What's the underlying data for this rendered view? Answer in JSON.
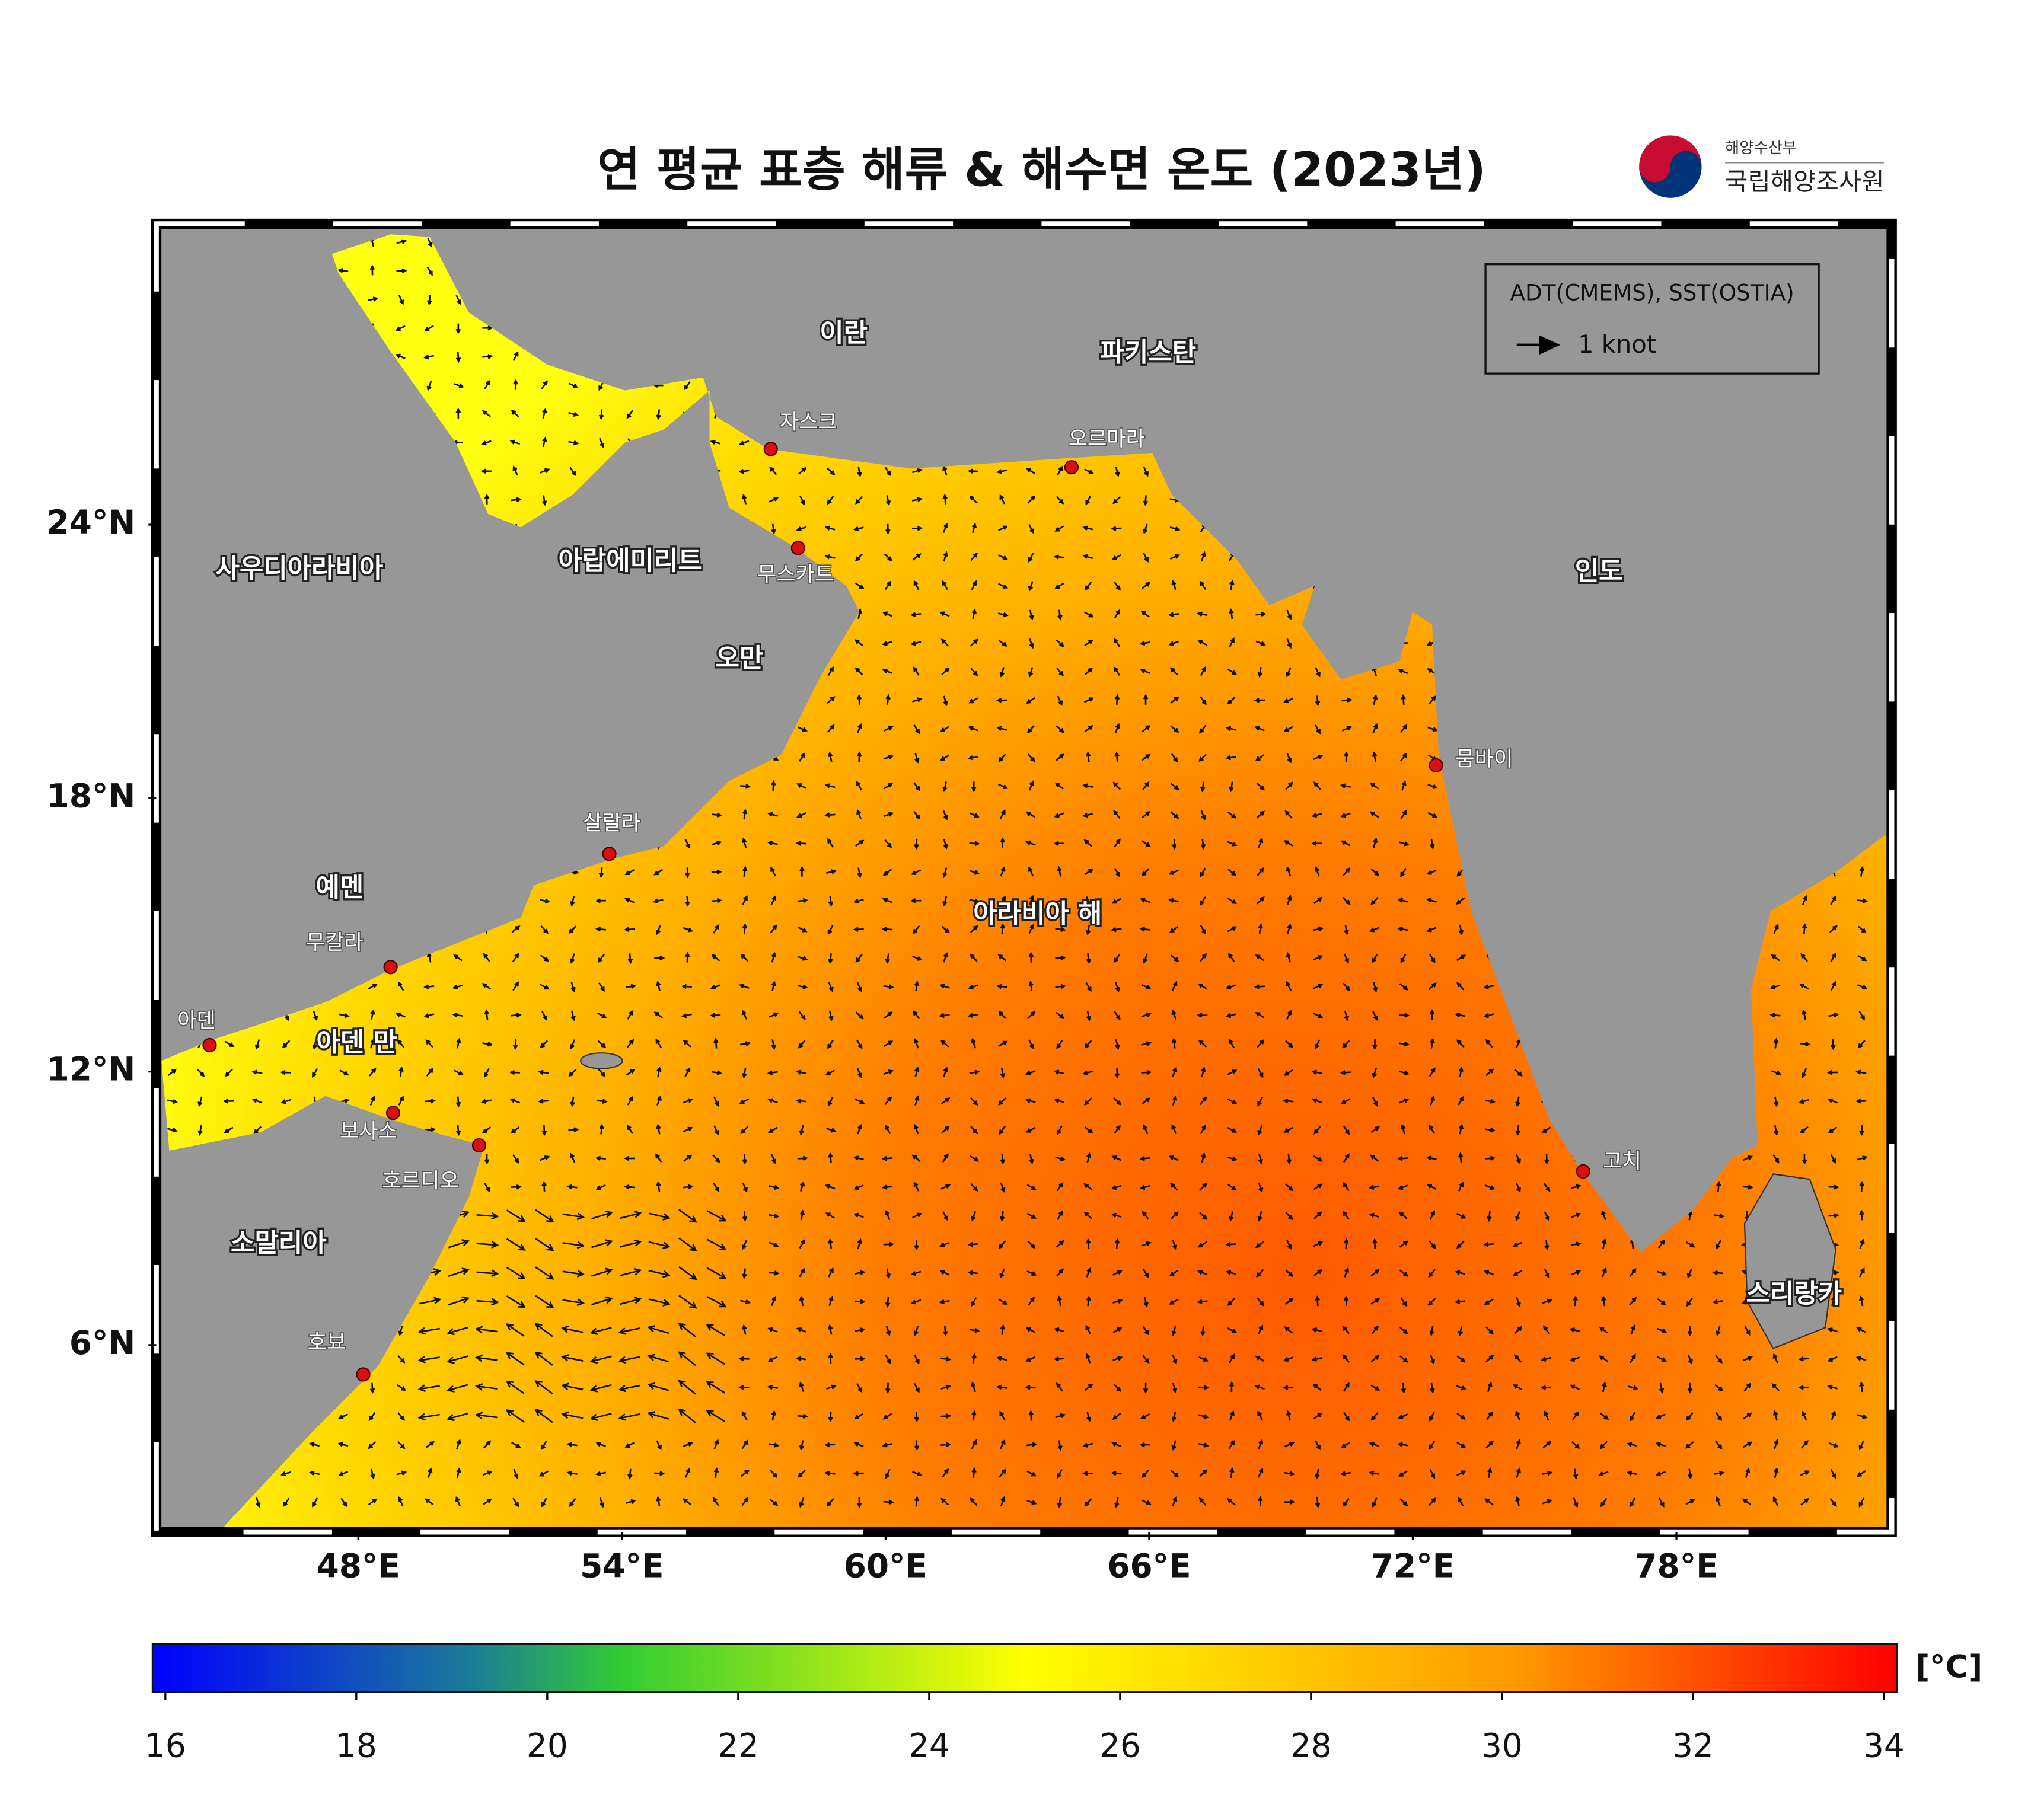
{
  "title": "연 평균 표층 해류 & 해수면 온도 (2023년)",
  "logo": {
    "ministry": "해양수산부",
    "agency": "국립해양조사원"
  },
  "legend": {
    "source": "ADT(CMEMS), SST(OSTIA)",
    "scale": "1 knot"
  },
  "map": {
    "xlim": [
      43.4,
      82.9
    ],
    "ylim": [
      1.9,
      30.6
    ],
    "xticks": [
      {
        "value": 48,
        "label": "48°E"
      },
      {
        "value": 54,
        "label": "54°E"
      },
      {
        "value": 60,
        "label": "60°E"
      },
      {
        "value": 66,
        "label": "66°E"
      },
      {
        "value": 72,
        "label": "72°E"
      },
      {
        "value": 78,
        "label": "78°E"
      }
    ],
    "yticks": [
      {
        "value": 6,
        "label": "6°N"
      },
      {
        "value": 12,
        "label": "12°N"
      },
      {
        "value": 18,
        "label": "18°N"
      },
      {
        "value": 24,
        "label": "24°N"
      }
    ]
  },
  "places": {
    "countries": [
      "이란",
      "파키스탄",
      "사우디아라비아",
      "아랍에미리트",
      "오만",
      "인도",
      "예멘",
      "아덴 만",
      "소말리아",
      "스리랑카",
      "아라비아 해"
    ],
    "cities": [
      "자스크",
      "무스카트",
      "오르마라",
      "뭄바이",
      "살랄라",
      "무칼라",
      "아덴",
      "보사소",
      "호르디오",
      "고치",
      "호뵤"
    ]
  },
  "colorbar": {
    "lim": [
      16,
      34
    ],
    "ticks": [
      16,
      18,
      20,
      22,
      24,
      26,
      28,
      30,
      32,
      34
    ],
    "unit": "[°C]"
  }
}
